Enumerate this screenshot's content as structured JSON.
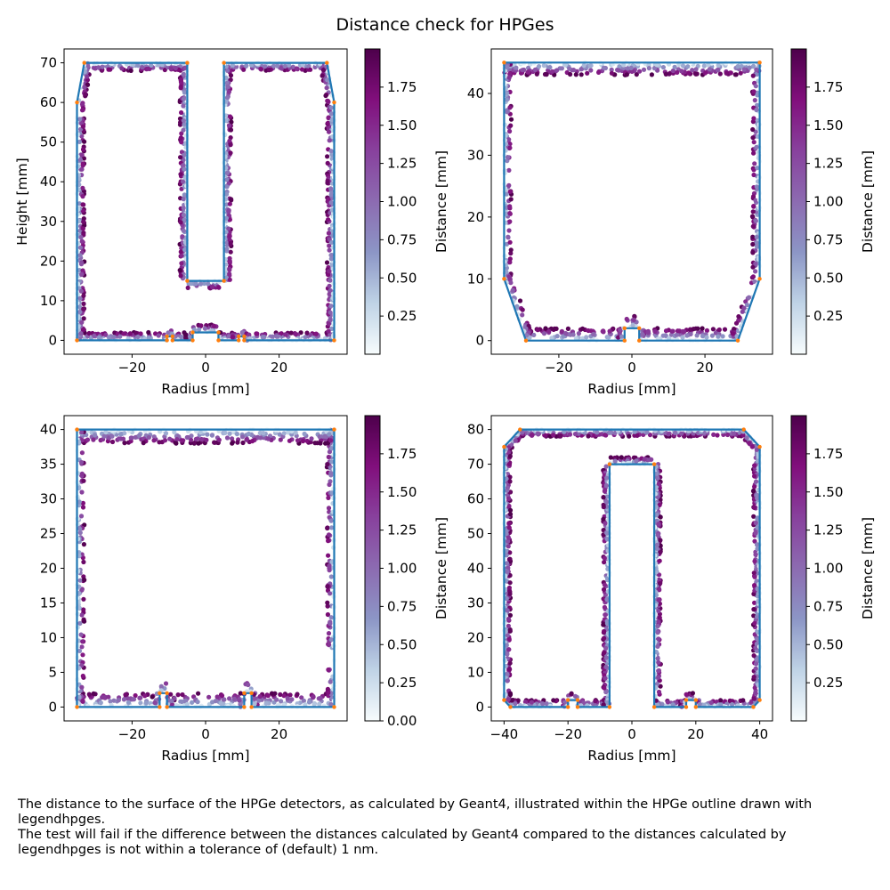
{
  "figure": {
    "title": "Distance check for HPGes",
    "caption_lines": [
      "The distance to the surface of the HPGe detectors, as calculated by Geant4, illustrated within the HPGe outline drawn with legendhpges.",
      "The test will fail if the difference between the distances calculated by Geant4 compared to the distances calculated by legendhpges is not within a tolerance of (default) 1 nm."
    ]
  },
  "colors": {
    "outline": "#1f77b4",
    "vertex": "#ff7f0e",
    "cmap_stops": [
      "#f7fcfd",
      "#bfd3e6",
      "#8c96c6",
      "#8c6bb1",
      "#88419d",
      "#810f7c",
      "#4d004b"
    ]
  },
  "chart_data": [
    {
      "type": "scatter",
      "xlabel": "Radius [mm]",
      "ylabel": "Height [mm]",
      "colorbar_label": "Distance [mm]",
      "xlim": [
        -38.5,
        38.5
      ],
      "ylim": [
        -3.5,
        73.5
      ],
      "xticks": [
        -20,
        0,
        20
      ],
      "yticks": [
        0,
        10,
        20,
        30,
        40,
        50,
        60,
        70
      ],
      "colorbar_range": [
        0.0,
        2.0
      ],
      "colorbar_ticks": [
        0.25,
        0.5,
        0.75,
        1.0,
        1.25,
        1.5,
        1.75
      ],
      "outline": [
        [
          -35,
          0
        ],
        [
          -10.5,
          0
        ],
        [
          -10.5,
          1
        ],
        [
          -9,
          1
        ],
        [
          -9,
          0
        ],
        [
          -3.5,
          0
        ],
        [
          -3.5,
          2
        ],
        [
          3.5,
          2
        ],
        [
          3.5,
          0
        ],
        [
          9,
          0
        ],
        [
          9,
          1
        ],
        [
          10.5,
          1
        ],
        [
          10.5,
          0
        ],
        [
          35,
          0
        ],
        [
          35,
          60
        ],
        [
          33,
          70
        ],
        [
          5,
          70
        ],
        [
          5,
          15
        ],
        [
          -5,
          15
        ],
        [
          -5,
          70
        ],
        [
          -33,
          70
        ],
        [
          -35,
          60
        ],
        [
          -35,
          0
        ]
      ],
      "points_mode": "inner"
    },
    {
      "type": "scatter",
      "xlabel": "Radius [mm]",
      "ylabel": "",
      "colorbar_label": "Distance [mm]",
      "xlim": [
        -38.5,
        38.5
      ],
      "ylim": [
        -2.2,
        47.2
      ],
      "xticks": [
        -20,
        0,
        20
      ],
      "yticks": [
        0,
        10,
        20,
        30,
        40
      ],
      "colorbar_range": [
        0.0,
        2.0
      ],
      "colorbar_ticks": [
        0.25,
        0.5,
        0.75,
        1.0,
        1.25,
        1.5,
        1.75
      ],
      "outline": [
        [
          -35,
          10
        ],
        [
          -29,
          0
        ],
        [
          -2,
          0
        ],
        [
          -2,
          2
        ],
        [
          2,
          2
        ],
        [
          2,
          0
        ],
        [
          29,
          0
        ],
        [
          35,
          10
        ],
        [
          35,
          45
        ],
        [
          -35,
          45
        ],
        [
          -35,
          10
        ]
      ],
      "points_mode": "inner"
    },
    {
      "type": "scatter",
      "xlabel": "Radius [mm]",
      "ylabel": "",
      "colorbar_label": "Distance [mm]",
      "xlim": [
        -38.5,
        38.5
      ],
      "ylim": [
        -2,
        42
      ],
      "xticks": [
        -20,
        0,
        20
      ],
      "yticks": [
        0,
        5,
        10,
        15,
        20,
        25,
        30,
        35,
        40
      ],
      "colorbar_range": [
        0.0,
        2.0
      ],
      "colorbar_ticks": [
        0.0,
        0.25,
        0.5,
        0.75,
        1.0,
        1.25,
        1.5,
        1.75
      ],
      "outline": [
        [
          -35,
          0
        ],
        [
          -12.5,
          0
        ],
        [
          -12.5,
          2
        ],
        [
          -10.5,
          2
        ],
        [
          -10.5,
          0
        ],
        [
          10.5,
          0
        ],
        [
          10.5,
          2
        ],
        [
          12.5,
          2
        ],
        [
          12.5,
          0
        ],
        [
          35,
          0
        ],
        [
          35,
          40
        ],
        [
          -35,
          40
        ],
        [
          -35,
          0
        ]
      ],
      "points_mode": "inner"
    },
    {
      "type": "scatter",
      "xlabel": "Radius [mm]",
      "ylabel": "",
      "colorbar_label": "Distance [mm]",
      "xlim": [
        -44,
        44
      ],
      "ylim": [
        -4,
        84
      ],
      "xticks": [
        -40,
        -20,
        0,
        20,
        40
      ],
      "yticks": [
        0,
        10,
        20,
        30,
        40,
        50,
        60,
        70,
        80
      ],
      "colorbar_range": [
        0.0,
        2.0
      ],
      "colorbar_ticks": [
        0.25,
        0.5,
        0.75,
        1.0,
        1.25,
        1.5,
        1.75
      ],
      "outline": [
        [
          -40,
          2
        ],
        [
          -38,
          0
        ],
        [
          -20,
          0
        ],
        [
          -20,
          2
        ],
        [
          -17,
          2
        ],
        [
          -17,
          0
        ],
        [
          -7,
          0
        ],
        [
          -7,
          70
        ],
        [
          7,
          70
        ],
        [
          7,
          0
        ],
        [
          17,
          0
        ],
        [
          17,
          2
        ],
        [
          20,
          2
        ],
        [
          20,
          0
        ],
        [
          38,
          0
        ],
        [
          40,
          2
        ],
        [
          40,
          75
        ],
        [
          35,
          80
        ],
        [
          -35,
          80
        ],
        [
          -40,
          75
        ],
        [
          -40,
          2
        ]
      ],
      "points_mode": "inner"
    }
  ]
}
